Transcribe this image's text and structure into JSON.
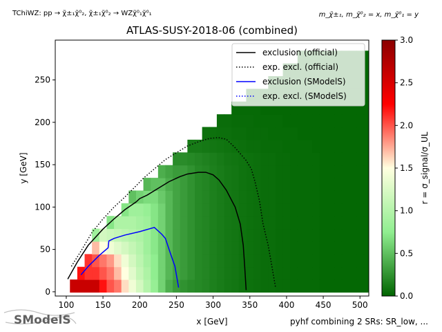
{
  "header": {
    "process": "TChiWZ: pp → χ̃±₁χ̃⁰₂, χ̃±₁χ̃⁰₂ → WZχ̃⁰₁χ̃⁰₁",
    "mass_map": "m_χ̃±₁, m_χ̃⁰₂ = x, m_χ̃⁰₁ = y"
  },
  "footer": {
    "logo_text": "SModelS",
    "combination_note": "pyhf combining 2 SRs: SR_low, ..."
  },
  "chart_data": {
    "type": "heatmap",
    "title": "ATLAS-SUSY-2018-06 (combined)",
    "xlabel": "x [GeV]",
    "ylabel": "y [GeV]",
    "xlim": [
      85,
      512
    ],
    "ylim": [
      -5,
      297
    ],
    "xticks": [
      100,
      150,
      200,
      250,
      300,
      350,
      400,
      450,
      500
    ],
    "yticks": [
      0,
      50,
      100,
      150,
      200,
      250
    ],
    "grid": false,
    "colorbar": {
      "label": "r = σ_signal/σ_UL",
      "min": 0.0,
      "max": 3.0,
      "ticks": [
        0.0,
        0.5,
        1.0,
        1.5,
        2.0,
        2.5,
        3.0
      ],
      "colormap": [
        "#006400",
        "#90ee90",
        "#ffffe0",
        "#ff0000",
        "#8b0000"
      ]
    },
    "heatmap": {
      "x_start": 110,
      "x_step": 10,
      "nx": 41,
      "y_start": 7,
      "y_step": 15,
      "ny": 19,
      "note": "r values estimated from cell colors; cells outside the scanned region are blank",
      "rows": [
        [
          2.6,
          2.6,
          2.6,
          2.6,
          2.2,
          2.0,
          1.9,
          1.6,
          1.4,
          1.2,
          1.0,
          0.8,
          0.6,
          0.4,
          0.3,
          0.25,
          0.22,
          0.2,
          0.18,
          0.15,
          0.13,
          0.11,
          0.1,
          0.08,
          0.07,
          0.06,
          0.05,
          0.05,
          0.04,
          0.04,
          0.03,
          0.03,
          0.03,
          0.03,
          0.02,
          0.02,
          0.02,
          0.02,
          0.02,
          0.02,
          0.02
        ],
        [
          null,
          2.2,
          2.1,
          2.1,
          2.0,
          1.9,
          1.7,
          1.5,
          1.3,
          1.1,
          0.95,
          0.75,
          0.6,
          0.45,
          0.35,
          0.3,
          0.25,
          0.2,
          0.18,
          0.15,
          0.13,
          0.11,
          0.1,
          0.08,
          0.07,
          0.06,
          0.05,
          0.05,
          0.04,
          0.04,
          0.03,
          0.03,
          0.03,
          0.03,
          0.02,
          0.02,
          0.02,
          0.02,
          0.02,
          0.02,
          0.02
        ],
        [
          null,
          null,
          2.1,
          2.0,
          1.9,
          1.8,
          1.6,
          1.4,
          1.2,
          1.05,
          0.9,
          0.75,
          0.6,
          0.45,
          0.35,
          0.3,
          0.25,
          0.2,
          0.18,
          0.15,
          0.13,
          0.11,
          0.1,
          0.08,
          0.07,
          0.06,
          0.05,
          0.05,
          0.04,
          0.04,
          0.03,
          0.03,
          0.03,
          0.03,
          0.02,
          0.02,
          0.02,
          0.02,
          0.02,
          0.02,
          0.02
        ],
        [
          null,
          null,
          null,
          1.7,
          1.5,
          1.4,
          1.3,
          1.2,
          1.1,
          1.0,
          0.85,
          0.72,
          0.6,
          0.45,
          0.35,
          0.3,
          0.25,
          0.2,
          0.18,
          0.15,
          0.13,
          0.11,
          0.1,
          0.08,
          0.07,
          0.06,
          0.05,
          0.05,
          0.04,
          0.04,
          0.03,
          0.03,
          0.03,
          0.03,
          0.02,
          0.02,
          0.02,
          0.02,
          0.02,
          0.02,
          0.02
        ],
        [
          null,
          null,
          null,
          0.85,
          1.2,
          1.15,
          1.1,
          1.05,
          1.0,
          0.95,
          0.85,
          0.72,
          0.6,
          0.45,
          0.35,
          0.3,
          0.25,
          0.2,
          0.18,
          0.15,
          0.13,
          0.11,
          0.1,
          0.08,
          0.07,
          0.06,
          0.05,
          0.05,
          0.04,
          0.04,
          0.03,
          0.03,
          0.03,
          0.03,
          0.02,
          0.02,
          0.02,
          0.02,
          0.02,
          0.02,
          0.02
        ],
        [
          null,
          null,
          null,
          null,
          null,
          0.7,
          0.95,
          0.95,
          0.95,
          0.9,
          0.85,
          0.7,
          0.6,
          0.45,
          0.35,
          0.3,
          0.25,
          0.2,
          0.18,
          0.15,
          0.13,
          0.11,
          0.1,
          0.08,
          0.07,
          0.06,
          0.05,
          0.05,
          0.04,
          0.04,
          0.03,
          0.03,
          0.03,
          0.03,
          0.02,
          0.02,
          0.02,
          0.02,
          0.02,
          0.02,
          0.02
        ],
        [
          null,
          null,
          null,
          null,
          null,
          null,
          null,
          0.7,
          0.85,
          0.85,
          0.8,
          0.7,
          0.6,
          0.45,
          0.35,
          0.3,
          0.25,
          0.2,
          0.18,
          0.15,
          0.13,
          0.11,
          0.1,
          0.08,
          0.07,
          0.06,
          0.05,
          0.05,
          0.04,
          0.04,
          0.03,
          0.03,
          0.03,
          0.03,
          0.02,
          0.02,
          0.02,
          0.02,
          0.02,
          0.02,
          0.02
        ],
        [
          null,
          null,
          null,
          null,
          null,
          null,
          null,
          null,
          0.5,
          0.6,
          0.65,
          0.65,
          0.55,
          0.45,
          0.35,
          0.3,
          0.25,
          0.2,
          0.18,
          0.15,
          0.13,
          0.11,
          0.1,
          0.08,
          0.07,
          0.06,
          0.05,
          0.05,
          0.04,
          0.04,
          0.03,
          0.03,
          0.03,
          0.03,
          0.02,
          0.02,
          0.02,
          0.02,
          0.02,
          0.02,
          0.02
        ],
        [
          null,
          null,
          null,
          null,
          null,
          null,
          null,
          null,
          null,
          null,
          0.45,
          0.5,
          0.5,
          0.4,
          0.35,
          0.3,
          0.25,
          0.2,
          0.18,
          0.15,
          0.13,
          0.11,
          0.1,
          0.08,
          0.07,
          0.06,
          0.05,
          0.05,
          0.04,
          0.04,
          0.03,
          0.03,
          0.03,
          0.03,
          0.02,
          0.02,
          0.02,
          0.02,
          0.02,
          0.02,
          0.02
        ],
        [
          null,
          null,
          null,
          null,
          null,
          null,
          null,
          null,
          null,
          null,
          null,
          null,
          0.4,
          0.35,
          0.3,
          0.3,
          0.25,
          0.2,
          0.18,
          0.15,
          0.13,
          0.11,
          0.1,
          0.08,
          0.07,
          0.06,
          0.05,
          0.05,
          0.04,
          0.04,
          0.03,
          0.03,
          0.03,
          0.03,
          0.02,
          0.02,
          0.02,
          0.02,
          0.02,
          0.02,
          0.02
        ],
        [
          null,
          null,
          null,
          null,
          null,
          null,
          null,
          null,
          null,
          null,
          null,
          null,
          null,
          null,
          0.22,
          0.22,
          0.2,
          0.18,
          0.16,
          0.14,
          0.12,
          0.1,
          0.09,
          0.08,
          0.07,
          0.06,
          0.05,
          0.05,
          0.04,
          0.04,
          0.03,
          0.03,
          0.03,
          0.03,
          0.02,
          0.02,
          0.02,
          0.02,
          0.02,
          0.02,
          0.02
        ],
        [
          null,
          null,
          null,
          null,
          null,
          null,
          null,
          null,
          null,
          null,
          null,
          null,
          null,
          null,
          null,
          null,
          0.12,
          0.12,
          0.11,
          0.1,
          0.09,
          0.08,
          0.07,
          0.06,
          0.05,
          0.05,
          0.04,
          0.04,
          0.04,
          0.03,
          0.03,
          0.03,
          0.03,
          0.02,
          0.02,
          0.02,
          0.02,
          0.02,
          0.02,
          0.02,
          0.02
        ],
        [
          null,
          null,
          null,
          null,
          null,
          null,
          null,
          null,
          null,
          null,
          null,
          null,
          null,
          null,
          null,
          null,
          null,
          null,
          0.07,
          0.07,
          0.06,
          0.06,
          0.05,
          0.05,
          0.04,
          0.04,
          0.04,
          0.03,
          0.03,
          0.03,
          0.03,
          0.02,
          0.02,
          0.02,
          0.02,
          0.02,
          0.02,
          0.02,
          0.02,
          0.02,
          0.02
        ],
        [
          null,
          null,
          null,
          null,
          null,
          null,
          null,
          null,
          null,
          null,
          null,
          null,
          null,
          null,
          null,
          null,
          null,
          null,
          null,
          null,
          0.05,
          0.05,
          0.04,
          0.04,
          0.04,
          0.03,
          0.03,
          0.03,
          0.03,
          0.02,
          0.02,
          0.02,
          0.02,
          0.02,
          0.02,
          0.02,
          0.02,
          0.02,
          0.02,
          0.02,
          0.02
        ],
        [
          null,
          null,
          null,
          null,
          null,
          null,
          null,
          null,
          null,
          null,
          null,
          null,
          null,
          null,
          null,
          null,
          null,
          null,
          null,
          null,
          null,
          null,
          0.03,
          0.03,
          0.03,
          0.03,
          0.02,
          0.02,
          0.02,
          0.02,
          0.02,
          0.02,
          0.02,
          0.02,
          0.02,
          0.02,
          0.02,
          0.02,
          0.02,
          0.02,
          0.02
        ],
        [
          null,
          null,
          null,
          null,
          null,
          null,
          null,
          null,
          null,
          null,
          null,
          null,
          null,
          null,
          null,
          null,
          null,
          null,
          null,
          null,
          null,
          null,
          null,
          null,
          0.02,
          0.02,
          0.02,
          0.02,
          0.02,
          0.02,
          0.02,
          0.02,
          0.02,
          0.02,
          0.02,
          0.02,
          0.02,
          0.02,
          0.02,
          0.02,
          0.02
        ],
        [
          null,
          null,
          null,
          null,
          null,
          null,
          null,
          null,
          null,
          null,
          null,
          null,
          null,
          null,
          null,
          null,
          null,
          null,
          null,
          null,
          null,
          null,
          null,
          null,
          null,
          null,
          null,
          0.02,
          0.02,
          0.02,
          0.02,
          0.02,
          0.02,
          0.02,
          0.02,
          0.02,
          0.02,
          0.02,
          0.02,
          0.02,
          0.02
        ],
        [
          null,
          null,
          null,
          null,
          null,
          null,
          null,
          null,
          null,
          null,
          null,
          null,
          null,
          null,
          null,
          null,
          null,
          null,
          null,
          null,
          null,
          null,
          null,
          null,
          null,
          null,
          null,
          null,
          null,
          0.02,
          0.02,
          0.02,
          0.02,
          0.02,
          0.02,
          0.02,
          0.02,
          0.02,
          0.02,
          0.02,
          0.02
        ],
        [
          null,
          null,
          null,
          null,
          null,
          null,
          null,
          null,
          null,
          null,
          null,
          null,
          null,
          null,
          null,
          null,
          null,
          null,
          null,
          null,
          null,
          null,
          null,
          null,
          null,
          null,
          null,
          null,
          null,
          null,
          null,
          0.02,
          0.02,
          0.02,
          0.02,
          0.02,
          0.02,
          0.02,
          0.02,
          0.02,
          0.02
        ]
      ]
    },
    "series": [
      {
        "name": "exclusion (official)",
        "color": "#000000",
        "dash": "solid",
        "points": [
          [
            102,
            15
          ],
          [
            115,
            35
          ],
          [
            130,
            55
          ],
          [
            150,
            74
          ],
          [
            165,
            86
          ],
          [
            180,
            97
          ],
          [
            195,
            106
          ],
          [
            200,
            110
          ],
          [
            210,
            114
          ],
          [
            225,
            122
          ],
          [
            240,
            130
          ],
          [
            255,
            136
          ],
          [
            265,
            139
          ],
          [
            280,
            141
          ],
          [
            290,
            141
          ],
          [
            300,
            138
          ],
          [
            308,
            132
          ],
          [
            318,
            120
          ],
          [
            330,
            100
          ],
          [
            337,
            80
          ],
          [
            341,
            55
          ],
          [
            343,
            30
          ],
          [
            345,
            2
          ]
        ]
      },
      {
        "name": "exp. excl. (official)",
        "color": "#000000",
        "dash": "dotted",
        "points": [
          [
            107,
            30
          ],
          [
            120,
            48
          ],
          [
            135,
            70
          ],
          [
            150,
            86
          ],
          [
            165,
            100
          ],
          [
            180,
            112
          ],
          [
            195,
            125
          ],
          [
            205,
            134
          ],
          [
            220,
            145
          ],
          [
            235,
            156
          ],
          [
            250,
            164
          ],
          [
            265,
            172
          ],
          [
            280,
            177
          ],
          [
            295,
            181
          ],
          [
            307,
            182
          ],
          [
            318,
            180
          ],
          [
            330,
            170
          ],
          [
            345,
            155
          ],
          [
            352,
            145
          ],
          [
            357,
            130
          ],
          [
            363,
            108
          ],
          [
            368,
            80
          ],
          [
            375,
            55
          ],
          [
            380,
            30
          ],
          [
            385,
            5
          ]
        ]
      },
      {
        "name": "exclusion (SModelS)",
        "color": "#0000ff",
        "dash": "solid",
        "points": [
          [
            120,
            20
          ],
          [
            130,
            30
          ],
          [
            145,
            43
          ],
          [
            157,
            52
          ],
          [
            158,
            60
          ],
          [
            165,
            63
          ],
          [
            180,
            67
          ],
          [
            200,
            71
          ],
          [
            220,
            76
          ],
          [
            230,
            68
          ],
          [
            235,
            63
          ],
          [
            242,
            45
          ],
          [
            248,
            30
          ],
          [
            251,
            15
          ],
          [
            253,
            5
          ]
        ]
      },
      {
        "name": "exp. excl. (SModelS)",
        "color": "#0000ff",
        "dash": "dotted",
        "points": []
      }
    ],
    "legend": {
      "placement": "top-right"
    }
  }
}
